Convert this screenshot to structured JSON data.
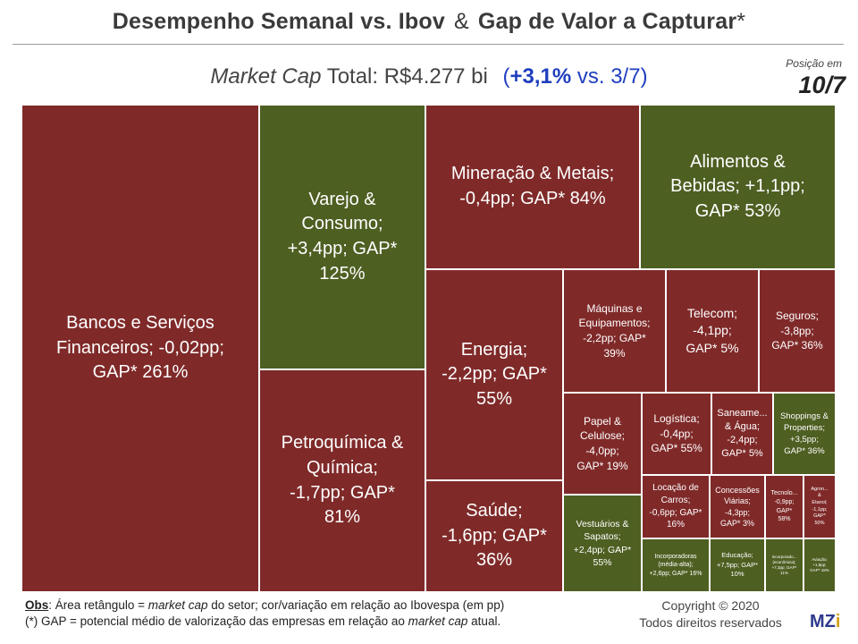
{
  "title": {
    "part1": "Desempenho Semanal vs. Ibov",
    "amp": "&",
    "part2": "Gap de Valor a Capturar",
    "star": "*"
  },
  "subtitle": {
    "market_cap_label": "Market Cap",
    "total_text": "Total: R$4.277 bi",
    "var_open": "(",
    "var_bold": "+3,1%",
    "var_rest": "vs. 3/7)"
  },
  "position": {
    "label": "Posição em",
    "date": "10/7"
  },
  "colors": {
    "red": "#7f2a29",
    "green": "#4e5f22",
    "border": "#ffffff"
  },
  "chart_data": {
    "type": "treemap",
    "size_measure": "market cap",
    "color_measure": "variação em relação ao Ibovespa (pp)",
    "sectors": [
      {
        "id": "bancos",
        "lines": [
          "Bancos e Serviços",
          "Financeiros; -0,02pp;",
          "GAP* 261%"
        ],
        "var_pp": -0.02,
        "gap_pct": 261
      },
      {
        "id": "varejo",
        "lines": [
          "Varejo &",
          "Consumo;",
          "+3,4pp; GAP*",
          "125%"
        ],
        "var_pp": 3.4,
        "gap_pct": 125
      },
      {
        "id": "petroquimica",
        "lines": [
          "Petroquímica &",
          "Química;",
          "-1,7pp; GAP*",
          "81%"
        ],
        "var_pp": -1.7,
        "gap_pct": 81
      },
      {
        "id": "mineracao",
        "lines": [
          "Mineração & Metais;",
          "-0,4pp; GAP* 84%"
        ],
        "var_pp": -0.4,
        "gap_pct": 84
      },
      {
        "id": "alimentos",
        "lines": [
          "Alimentos &",
          "Bebidas; +1,1pp;",
          "GAP* 53%"
        ],
        "var_pp": 1.1,
        "gap_pct": 53
      },
      {
        "id": "energia",
        "lines": [
          "Energia;",
          "-2,2pp; GAP*",
          "55%"
        ],
        "var_pp": -2.2,
        "gap_pct": 55
      },
      {
        "id": "saude",
        "lines": [
          "Saúde;",
          "-1,6pp; GAP*",
          "36%"
        ],
        "var_pp": -1.6,
        "gap_pct": 36
      },
      {
        "id": "maquinas",
        "lines": [
          "Máquinas e",
          "Equipamentos;",
          "-2,2pp; GAP*",
          "39%"
        ],
        "var_pp": -2.2,
        "gap_pct": 39
      },
      {
        "id": "telecom",
        "lines": [
          "Telecom;",
          "-4,1pp;",
          "GAP* 5%"
        ],
        "var_pp": -4.1,
        "gap_pct": 5
      },
      {
        "id": "seguros",
        "lines": [
          "Seguros;",
          "-3,8pp;",
          "GAP* 36%"
        ],
        "var_pp": -3.8,
        "gap_pct": 36
      },
      {
        "id": "papel",
        "lines": [
          "Papel &",
          "Celulose;",
          "-4,0pp;",
          "GAP* 19%"
        ],
        "var_pp": -4.0,
        "gap_pct": 19
      },
      {
        "id": "logistica",
        "lines": [
          "Logística;",
          "-0,4pp;",
          "GAP* 55%"
        ],
        "var_pp": -0.4,
        "gap_pct": 55
      },
      {
        "id": "saneamento",
        "lines": [
          "Saneame...",
          "& Água;",
          "-2,4pp;",
          "GAP* 5%"
        ],
        "var_pp": -2.4,
        "gap_pct": 5
      },
      {
        "id": "shoppings",
        "lines": [
          "Shoppings &",
          "Properties;",
          "+3,5pp;",
          "GAP* 36%"
        ],
        "var_pp": 3.5,
        "gap_pct": 36
      },
      {
        "id": "vestuarios",
        "lines": [
          "Vestuários &",
          "Sapatos;",
          "+2,4pp; GAP*",
          "55%"
        ],
        "var_pp": 2.4,
        "gap_pct": 55
      },
      {
        "id": "locacao",
        "lines": [
          "Locação de",
          "Carros;",
          "-0,6pp; GAP*",
          "16%"
        ],
        "var_pp": -0.6,
        "gap_pct": 16
      },
      {
        "id": "concessoes",
        "lines": [
          "Concessões",
          "Viárias;",
          "-4,3pp;",
          "GAP* 3%"
        ],
        "var_pp": -4.3,
        "gap_pct": 3
      },
      {
        "id": "tecnologia",
        "lines": [
          "Tecnolo...",
          "-0,9pp;",
          "GAP*",
          "58%"
        ],
        "var_pp": -0.9,
        "gap_pct": 58
      },
      {
        "id": "agro",
        "lines": [
          "Agron...",
          "&",
          "Etanol;",
          "-1,1pp;",
          "GAP*",
          "50%"
        ],
        "var_pp": -1.1,
        "gap_pct": 50
      },
      {
        "id": "incorp_ma",
        "lines": [
          "Incorporadoras",
          "(média-alta);",
          "+2,6pp; GAP* 16%"
        ],
        "var_pp": 2.6,
        "gap_pct": 16
      },
      {
        "id": "educacao",
        "lines": [
          "Educação;",
          "+7,5pp; GAP*",
          "10%"
        ],
        "var_pp": 7.5,
        "gap_pct": 10
      },
      {
        "id": "incorp_eco",
        "lines": [
          "Incorporado...",
          "(econômica);",
          "+7,3pp; GAP*",
          "11%"
        ],
        "var_pp": 7.3,
        "gap_pct": 11
      },
      {
        "id": "aviacao",
        "lines": [
          "Aviação;",
          "+1,8pp;",
          "GAP* 18%"
        ],
        "var_pp": 1.8,
        "gap_pct": 18
      }
    ]
  },
  "footer": {
    "obs_label": "Obs",
    "obs_a": ": Área retângulo =",
    "obs_mc": "market cap",
    "obs_b": "do setor; cor/variação em relação ao Ibovespa (em pp)",
    "gap_a": "(*) GAP = potencial médio de valorização das empresas em relação ao",
    "gap_mc": "market cap",
    "gap_b": "atual.",
    "copyright": "Copyright © 2020",
    "rights": "Todos direitos reservados",
    "logo_m": "MZ",
    "logo_i": "i"
  }
}
